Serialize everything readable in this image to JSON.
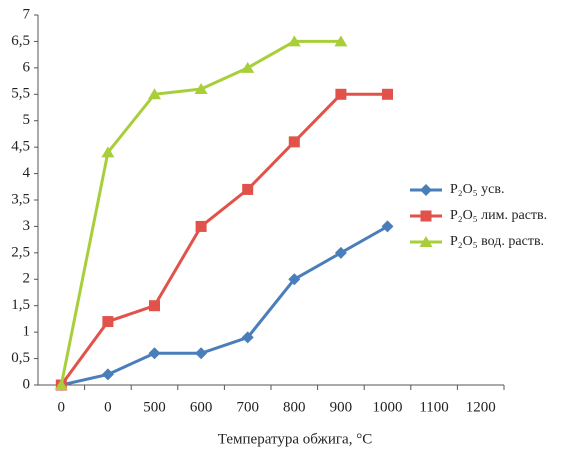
{
  "chart_data": {
    "type": "line",
    "categories": [
      "0",
      "0",
      "500",
      "600",
      "700",
      "800",
      "900",
      "1000",
      "1100",
      "1200"
    ],
    "x_label": "Температура обжига, °С",
    "series": [
      {
        "name": "P₂O₅ усв.",
        "color": "#4a7ebb",
        "marker": "diamond",
        "values": [
          0,
          0.2,
          0.6,
          0.6,
          0.9,
          2.0,
          2.5,
          3.0,
          null,
          null
        ]
      },
      {
        "name": "P₂O₅ лим. раств.",
        "color": "#e0524a",
        "marker": "square",
        "values": [
          0,
          1.2,
          1.5,
          3.0,
          3.7,
          4.6,
          5.5,
          5.5,
          null,
          null
        ]
      },
      {
        "name": "P₂O₅ вод. раств.",
        "color": "#a8cf3a",
        "marker": "triangle",
        "values": [
          0,
          4.4,
          5.5,
          5.6,
          6.0,
          6.5,
          6.5,
          null,
          null,
          null
        ]
      }
    ],
    "ylim": [
      0,
      7
    ],
    "yticks": [
      0,
      {
        "value": 0.5,
        "label": "0,5"
      },
      1,
      {
        "value": 1.5,
        "label": "1,5"
      },
      2,
      {
        "value": 2.5,
        "label": "2,5"
      },
      3,
      {
        "value": 3.5,
        "label": "3,5"
      },
      4,
      {
        "value": 4.5,
        "label": "4,5"
      },
      5,
      {
        "value": 5.5,
        "label": "5,5"
      },
      6,
      {
        "value": 6.5,
        "label": "6,5"
      },
      7
    ],
    "grid": false,
    "legend": "right"
  }
}
